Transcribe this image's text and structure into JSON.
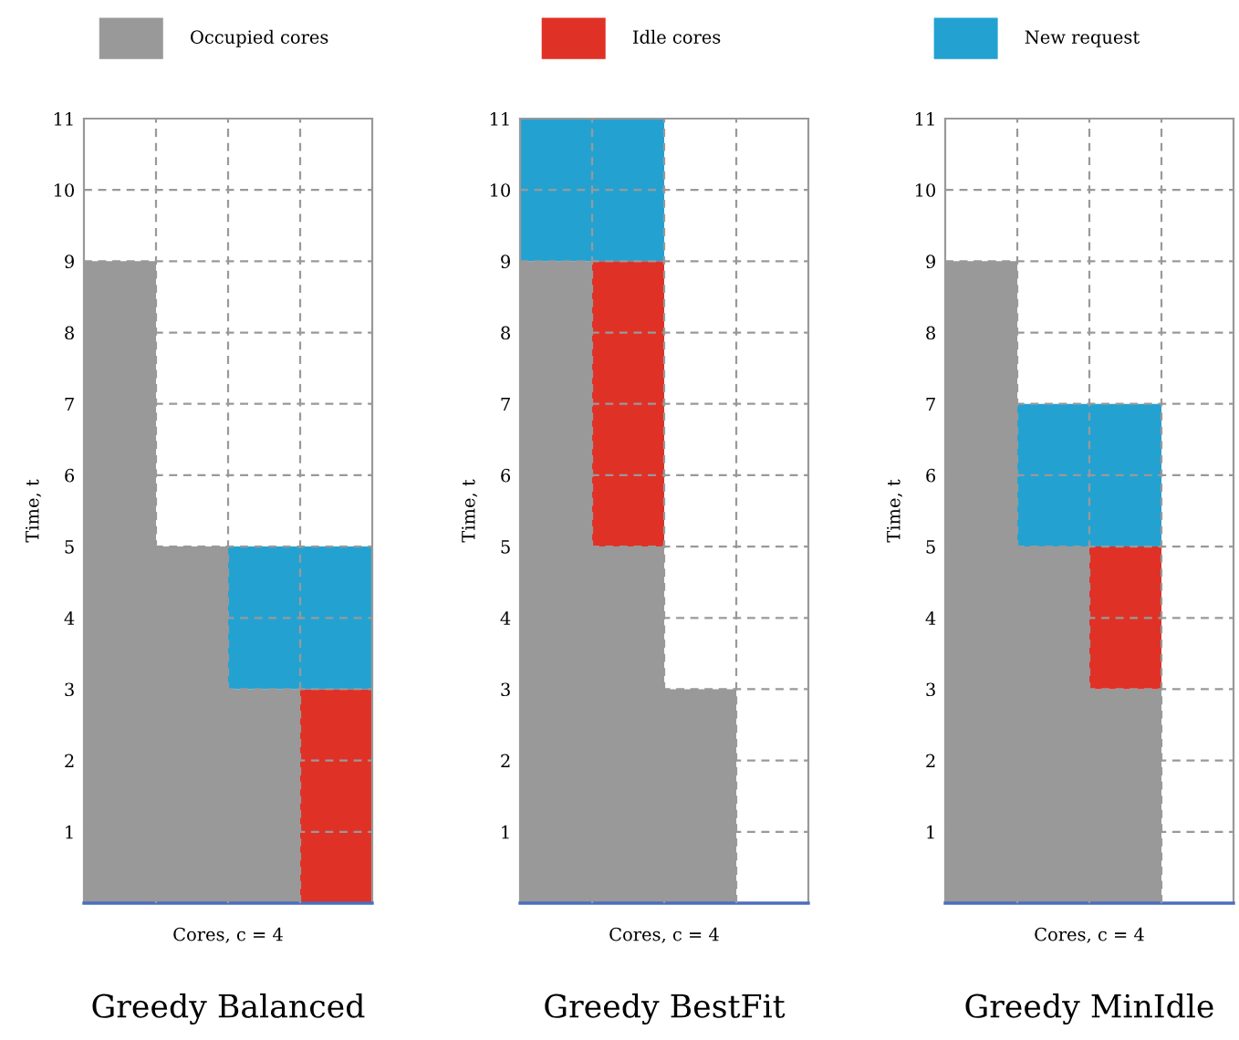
{
  "chart_data": [
    {
      "type": "bar",
      "stacked": true,
      "title": "Greedy Balanced",
      "xlabel": "Cores, c = 4",
      "ylabel": "Time, t",
      "categories": [
        null,
        null,
        null,
        null
      ],
      "ylim": [
        0,
        11
      ],
      "yticks": [
        1,
        2,
        3,
        4,
        5,
        6,
        7,
        8,
        9,
        10,
        11
      ],
      "grid": true,
      "legend": "top",
      "series": [
        {
          "name": "Occupied cores",
          "color": "#999999",
          "values": [
            9,
            5,
            3,
            0
          ]
        },
        {
          "name": "Idle cores",
          "color": "#e03126",
          "values": [
            0,
            0,
            0,
            3
          ]
        },
        {
          "name": "New request",
          "color": "#23a2d2",
          "values": [
            0,
            0,
            2,
            2
          ]
        }
      ]
    },
    {
      "type": "bar",
      "stacked": true,
      "title": "Greedy BestFit",
      "xlabel": "Cores, c = 4",
      "ylabel": "Time, t",
      "categories": [
        null,
        null,
        null,
        null
      ],
      "ylim": [
        0,
        11
      ],
      "yticks": [
        1,
        2,
        3,
        4,
        5,
        6,
        7,
        8,
        9,
        10,
        11
      ],
      "grid": true,
      "series": [
        {
          "color": "#999999",
          "values": [
            9,
            5,
            3,
            0
          ]
        },
        {
          "color": "#e03126",
          "values": [
            0,
            4,
            0,
            0
          ]
        },
        {
          "color": "#23a2d2",
          "values": [
            2,
            2,
            0,
            0
          ]
        }
      ]
    },
    {
      "type": "bar",
      "stacked": true,
      "title": "Greedy MinIdle",
      "xlabel": "Cores, c = 4",
      "ylabel": "Time, t",
      "categories": [
        null,
        null,
        null,
        null
      ],
      "ylim": [
        0,
        11
      ],
      "yticks": [
        1,
        2,
        3,
        4,
        5,
        6,
        7,
        8,
        9,
        10,
        11
      ],
      "grid": true,
      "series": [
        {
          "color": "#999999",
          "values": [
            9,
            5,
            3,
            0
          ]
        },
        {
          "color": "#e03126",
          "values": [
            0,
            0,
            2,
            0
          ]
        },
        {
          "color": "#23a2d2",
          "values": [
            0,
            2,
            2,
            0
          ]
        }
      ]
    }
  ]
}
